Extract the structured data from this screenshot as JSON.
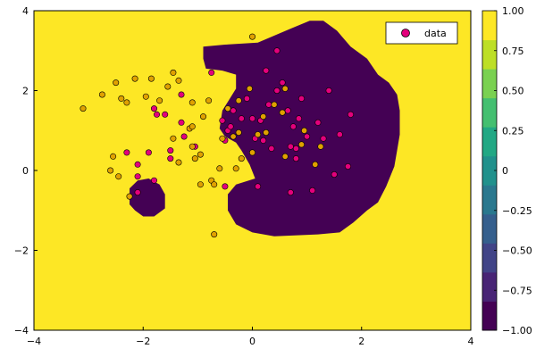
{
  "chart_data": [
    {
      "type": "contour",
      "xlim": [
        -4,
        4
      ],
      "ylim": [
        -4,
        4
      ],
      "x_ticks": [
        "−4",
        "−2",
        "0",
        "2",
        "4"
      ],
      "y_ticks": [
        "−4",
        "−2",
        "0",
        "2",
        "4"
      ],
      "background_level": 1.0,
      "regions": [
        {
          "level": -1.0,
          "polygon": [
            [
              -0.9,
              3.1
            ],
            [
              -0.5,
              3.15
            ],
            [
              0.1,
              3.2
            ],
            [
              0.7,
              3.55
            ],
            [
              1.05,
              3.75
            ],
            [
              1.3,
              3.75
            ],
            [
              1.55,
              3.5
            ],
            [
              1.8,
              3.1
            ],
            [
              2.1,
              2.8
            ],
            [
              2.3,
              2.4
            ],
            [
              2.5,
              2.2
            ],
            [
              2.65,
              1.9
            ],
            [
              2.7,
              1.5
            ],
            [
              2.7,
              0.9
            ],
            [
              2.65,
              0.5
            ],
            [
              2.6,
              0.1
            ],
            [
              2.45,
              -0.4
            ],
            [
              2.3,
              -0.8
            ],
            [
              2.1,
              -1.0
            ],
            [
              1.85,
              -1.3
            ],
            [
              1.6,
              -1.55
            ],
            [
              1.2,
              -1.6
            ],
            [
              0.4,
              -1.65
            ],
            [
              0.0,
              -1.55
            ],
            [
              -0.3,
              -1.35
            ],
            [
              -0.45,
              -1.0
            ],
            [
              -0.45,
              -0.6
            ],
            [
              -0.3,
              -0.35
            ],
            [
              0.05,
              -0.2
            ],
            [
              -0.05,
              0.15
            ],
            [
              -0.2,
              0.5
            ],
            [
              -0.3,
              0.7
            ],
            [
              -0.5,
              0.85
            ],
            [
              -0.6,
              1.05
            ],
            [
              -0.55,
              1.5
            ],
            [
              -0.3,
              2.05
            ],
            [
              -0.3,
              2.4
            ],
            [
              -0.55,
              2.5
            ],
            [
              -0.85,
              2.55
            ],
            [
              -0.9,
              2.8
            ]
          ]
        },
        {
          "level": -1.0,
          "polygon": [
            [
              -2.1,
              -0.25
            ],
            [
              -1.9,
              -0.2
            ],
            [
              -1.7,
              -0.35
            ],
            [
              -1.6,
              -0.6
            ],
            [
              -1.6,
              -0.95
            ],
            [
              -1.8,
              -1.15
            ],
            [
              -2.0,
              -1.15
            ],
            [
              -2.15,
              -1.0
            ],
            [
              -2.25,
              -0.85
            ],
            [
              -2.25,
              -0.45
            ]
          ]
        }
      ],
      "series": [
        {
          "name": "data",
          "color": "#e3007c",
          "points": [
            [
              -1.8,
              1.55
            ],
            [
              -1.75,
              1.4
            ],
            [
              -1.6,
              1.4
            ],
            [
              -1.3,
              1.9
            ],
            [
              -1.3,
              1.2
            ],
            [
              -1.25,
              0.85
            ],
            [
              -1.05,
              0.6
            ],
            [
              -1.5,
              0.5
            ],
            [
              -1.5,
              0.3
            ],
            [
              -1.9,
              0.45
            ],
            [
              -2.1,
              0.15
            ],
            [
              -2.3,
              0.45
            ],
            [
              -1.8,
              -0.25
            ],
            [
              -2.1,
              -0.15
            ],
            [
              -2.1,
              -0.55
            ],
            [
              -0.5,
              -0.4
            ],
            [
              -0.75,
              2.45
            ],
            [
              -0.55,
              1.25
            ],
            [
              -0.5,
              0.75
            ],
            [
              -0.45,
              1.0
            ],
            [
              -0.4,
              1.1
            ],
            [
              -0.35,
              1.5
            ],
            [
              -0.2,
              1.3
            ],
            [
              -0.1,
              1.8
            ],
            [
              0.0,
              1.3
            ],
            [
              0.05,
              0.8
            ],
            [
              0.1,
              -0.4
            ],
            [
              0.15,
              1.25
            ],
            [
              0.2,
              0.75
            ],
            [
              0.25,
              2.5
            ],
            [
              0.3,
              1.65
            ],
            [
              0.35,
              0.55
            ],
            [
              0.45,
              2.0
            ],
            [
              0.45,
              3.0
            ],
            [
              0.55,
              2.2
            ],
            [
              0.65,
              1.5
            ],
            [
              0.7,
              0.6
            ],
            [
              0.8,
              0.55
            ],
            [
              0.75,
              1.1
            ],
            [
              0.8,
              0.3
            ],
            [
              0.85,
              1.3
            ],
            [
              0.9,
              1.8
            ],
            [
              1.0,
              0.85
            ],
            [
              1.1,
              -0.5
            ],
            [
              1.2,
              1.2
            ],
            [
              1.3,
              0.8
            ],
            [
              1.4,
              2.0
            ],
            [
              1.6,
              0.9
            ],
            [
              1.8,
              1.4
            ],
            [
              1.75,
              0.1
            ],
            [
              0.7,
              -0.55
            ],
            [
              1.5,
              -0.1
            ]
          ]
        },
        {
          "name": "",
          "color": "#e0a100",
          "points": [
            [
              -3.1,
              1.55
            ],
            [
              -2.75,
              1.9
            ],
            [
              -2.5,
              2.2
            ],
            [
              -2.4,
              1.8
            ],
            [
              -2.3,
              1.7
            ],
            [
              -2.6,
              0.0
            ],
            [
              -2.55,
              0.35
            ],
            [
              -2.45,
              -0.15
            ],
            [
              -2.25,
              -0.65
            ],
            [
              -2.15,
              2.3
            ],
            [
              -1.95,
              1.85
            ],
            [
              -1.85,
              2.3
            ],
            [
              -1.7,
              1.75
            ],
            [
              -1.55,
              2.1
            ],
            [
              -1.45,
              2.45
            ],
            [
              -1.35,
              2.25
            ],
            [
              -1.45,
              0.8
            ],
            [
              -1.35,
              0.2
            ],
            [
              -1.15,
              1.05
            ],
            [
              -1.1,
              1.7
            ],
            [
              -1.05,
              0.3
            ],
            [
              -0.95,
              0.4
            ],
            [
              -1.1,
              0.6
            ],
            [
              -0.9,
              1.35
            ],
            [
              -0.8,
              1.75
            ],
            [
              -0.95,
              -0.35
            ],
            [
              -0.75,
              -0.25
            ],
            [
              -0.7,
              -0.35
            ],
            [
              -0.7,
              -1.6
            ],
            [
              -0.55,
              0.8
            ],
            [
              -0.45,
              1.55
            ],
            [
              -0.35,
              0.85
            ],
            [
              -0.25,
              0.95
            ],
            [
              -0.2,
              0.3
            ],
            [
              -0.3,
              0.05
            ],
            [
              -0.05,
              2.05
            ],
            [
              0.0,
              0.45
            ],
            [
              0.0,
              3.35
            ],
            [
              0.2,
              1.35
            ],
            [
              0.25,
              0.95
            ],
            [
              0.4,
              1.65
            ],
            [
              0.55,
              1.45
            ],
            [
              0.6,
              2.05
            ],
            [
              0.6,
              0.35
            ],
            [
              0.95,
              1.0
            ],
            [
              1.25,
              0.6
            ],
            [
              1.15,
              0.15
            ],
            [
              0.9,
              0.65
            ],
            [
              -0.25,
              1.75
            ],
            [
              -1.1,
              1.1
            ],
            [
              -0.6,
              0.05
            ],
            [
              0.1,
              0.9
            ]
          ]
        }
      ],
      "legend": {
        "entries": [
          "data"
        ],
        "position": "top-right"
      },
      "colorbar": {
        "ticks": [
          "1.00",
          "0.75",
          "0.50",
          "0.25",
          "0",
          "−0.25",
          "−0.50",
          "−0.75",
          "−1.00"
        ],
        "range": [
          -1,
          1
        ],
        "colors": [
          "#440154",
          "#482475",
          "#414487",
          "#355f8d",
          "#2a788e",
          "#21918c",
          "#22a884",
          "#44bf70",
          "#7ad151",
          "#bddf26",
          "#fde725"
        ]
      },
      "grid": false
    }
  ]
}
